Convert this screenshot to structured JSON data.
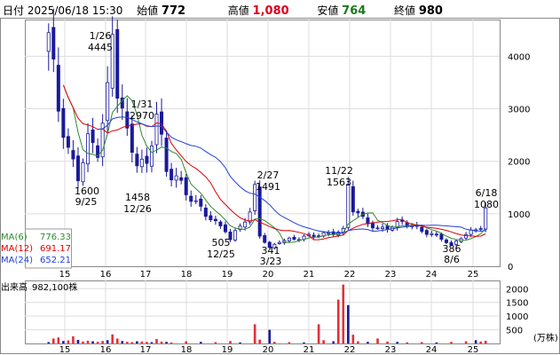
{
  "header": {
    "date_label": "日付",
    "datetime": "2025/06/18 15:30",
    "open_label": "始値",
    "open_value": "772",
    "high_label": "高値",
    "high_value": "1,080",
    "low_label": "安値",
    "low_value": "764",
    "close_label": "終値",
    "close_value": "980"
  },
  "chart_data": {
    "type": "candlestick",
    "x_ticks": [
      "15",
      "16",
      "17",
      "18",
      "19",
      "20",
      "21",
      "22",
      "23",
      "24",
      "25"
    ],
    "price_axis": {
      "ticks": [
        "0",
        "1000",
        "2000",
        "3000",
        "4000"
      ],
      "ylim": [
        0,
        4700
      ]
    },
    "volume_axis": {
      "ticks": [
        "500",
        "1000",
        "1500",
        "2000"
      ],
      "ylim": [
        0,
        2300
      ],
      "unit": "(万株)"
    },
    "moving_averages": [
      {
        "label": "MA(6)",
        "value": "776.33",
        "color": "#2e8b2e"
      },
      {
        "label": "MA(12)",
        "value": "691.17",
        "color": "#e00000"
      },
      {
        "label": "MA(24)",
        "value": "652.21",
        "color": "#2040e0"
      }
    ],
    "volume_label": "出来高",
    "volume_value": "982,100株",
    "annotations": [
      {
        "date": "1/26",
        "value": "4445"
      },
      {
        "date": "9/25",
        "value": "1600"
      },
      {
        "date": "1/31",
        "value": "2970"
      },
      {
        "date": "12/26",
        "value": "1458"
      },
      {
        "date": "12/25",
        "value": "505"
      },
      {
        "date": "2/27",
        "value": "1491"
      },
      {
        "date": "3/23",
        "value": "341"
      },
      {
        "date": "11/22",
        "value": "1563"
      },
      {
        "date": "8/6",
        "value": "386"
      },
      {
        "date": "6/18",
        "value": "1080"
      }
    ],
    "series_keypoints": [
      [
        0,
        4450
      ],
      [
        2,
        3000
      ],
      [
        4,
        2200
      ],
      [
        6,
        1700
      ],
      [
        8,
        2400
      ],
      [
        10,
        2200
      ],
      [
        12,
        3300
      ],
      [
        13,
        4445
      ],
      [
        14,
        3400
      ],
      [
        16,
        2500
      ],
      [
        18,
        2000
      ],
      [
        20,
        1900
      ],
      [
        22,
        2950
      ],
      [
        24,
        1800
      ],
      [
        26,
        1700
      ],
      [
        28,
        1400
      ],
      [
        30,
        1200
      ],
      [
        32,
        1000
      ],
      [
        34,
        820
      ],
      [
        36,
        700
      ],
      [
        37,
        505
      ],
      [
        39,
        780
      ],
      [
        41,
        1000
      ],
      [
        42,
        1491
      ],
      [
        43,
        600
      ],
      [
        45,
        341
      ],
      [
        47,
        480
      ],
      [
        50,
        520
      ],
      [
        53,
        580
      ],
      [
        57,
        620
      ],
      [
        60,
        680
      ],
      [
        61,
        1563
      ],
      [
        62,
        1100
      ],
      [
        64,
        900
      ],
      [
        67,
        700
      ],
      [
        70,
        760
      ],
      [
        72,
        850
      ],
      [
        75,
        720
      ],
      [
        78,
        600
      ],
      [
        80,
        540
      ],
      [
        82,
        386
      ],
      [
        84,
        560
      ],
      [
        86,
        650
      ],
      [
        88,
        760
      ],
      [
        89,
        1080
      ]
    ],
    "volume_pattern": [
      [
        0,
        50
      ],
      [
        1,
        180
      ],
      [
        2,
        220
      ],
      [
        3,
        90
      ],
      [
        4,
        110
      ],
      [
        5,
        260
      ],
      [
        6,
        130
      ],
      [
        7,
        70
      ],
      [
        8,
        100
      ],
      [
        9,
        80
      ],
      [
        10,
        60
      ],
      [
        11,
        90
      ],
      [
        12,
        120
      ],
      [
        13,
        330
      ],
      [
        14,
        180
      ],
      [
        15,
        90
      ],
      [
        16,
        60
      ],
      [
        17,
        50
      ],
      [
        18,
        80
      ],
      [
        19,
        70
      ],
      [
        20,
        60
      ],
      [
        21,
        50
      ],
      [
        22,
        160
      ],
      [
        23,
        70
      ],
      [
        24,
        60
      ],
      [
        25,
        40
      ],
      [
        28,
        80
      ],
      [
        31,
        60
      ],
      [
        34,
        50
      ],
      [
        37,
        90
      ],
      [
        39,
        40
      ],
      [
        42,
        700
      ],
      [
        43,
        140
      ],
      [
        45,
        500
      ],
      [
        46,
        60
      ],
      [
        49,
        50
      ],
      [
        52,
        40
      ],
      [
        55,
        700
      ],
      [
        56,
        120
      ],
      [
        58,
        80
      ],
      [
        59,
        1600
      ],
      [
        60,
        2150
      ],
      [
        61,
        1400
      ],
      [
        62,
        320
      ],
      [
        63,
        80
      ],
      [
        65,
        60
      ],
      [
        67,
        180
      ],
      [
        69,
        70
      ],
      [
        71,
        60
      ],
      [
        73,
        40
      ],
      [
        76,
        50
      ],
      [
        79,
        40
      ],
      [
        82,
        60
      ],
      [
        85,
        80
      ],
      [
        87,
        120
      ],
      [
        88,
        70
      ],
      [
        89,
        98
      ]
    ]
  }
}
